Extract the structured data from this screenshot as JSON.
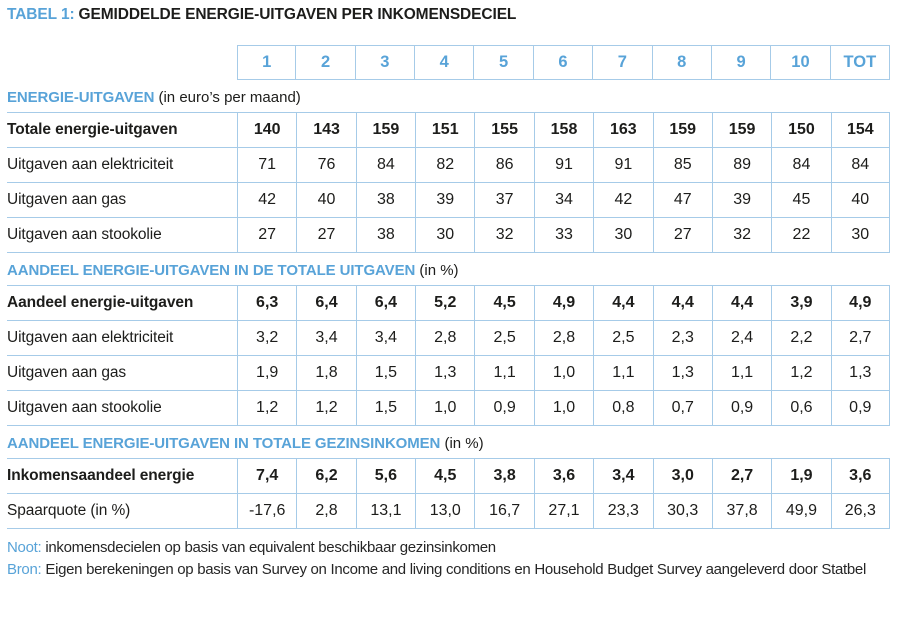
{
  "title": {
    "tag": "TABEL 1:",
    "text": "GEMIDDELDE ENERGIE-UITGAVEN PER INKOMENSDECIEL"
  },
  "colors": {
    "accent_blue": "#58a3d8",
    "grid_line_blue": "#a6cbe8",
    "text_black": "#1d1d1b"
  },
  "table": {
    "columns": [
      "1",
      "2",
      "3",
      "4",
      "5",
      "6",
      "7",
      "8",
      "9",
      "10",
      "TOT"
    ],
    "sections": [
      {
        "heading": "ENERGIE-UITGAVEN",
        "heading_suffix": "(in euro’s per maand)",
        "rows": [
          {
            "label": "Totale energie-uitgaven",
            "bold": true,
            "values": [
              "140",
              "143",
              "159",
              "151",
              "155",
              "158",
              "163",
              "159",
              "159",
              "150",
              "154"
            ]
          },
          {
            "label": "Uitgaven aan elektriciteit",
            "bold": false,
            "values": [
              "71",
              "76",
              "84",
              "82",
              "86",
              "91",
              "91",
              "85",
              "89",
              "84",
              "84"
            ]
          },
          {
            "label": "Uitgaven aan gas",
            "bold": false,
            "values": [
              "42",
              "40",
              "38",
              "39",
              "37",
              "34",
              "42",
              "47",
              "39",
              "45",
              "40"
            ]
          },
          {
            "label": "Uitgaven aan stookolie",
            "bold": false,
            "values": [
              "27",
              "27",
              "38",
              "30",
              "32",
              "33",
              "30",
              "27",
              "32",
              "22",
              "30"
            ]
          }
        ]
      },
      {
        "heading": "AANDEEL ENERGIE-UITGAVEN IN DE TOTALE UITGAVEN",
        "heading_suffix": "(in %)",
        "rows": [
          {
            "label": "Aandeel energie-uitgaven",
            "bold": true,
            "values": [
              "6,3",
              "6,4",
              "6,4",
              "5,2",
              "4,5",
              "4,9",
              "4,4",
              "4,4",
              "4,4",
              "3,9",
              "4,9"
            ]
          },
          {
            "label": "Uitgaven aan elektriciteit",
            "bold": false,
            "values": [
              "3,2",
              "3,4",
              "3,4",
              "2,8",
              "2,5",
              "2,8",
              "2,5",
              "2,3",
              "2,4",
              "2,2",
              "2,7"
            ]
          },
          {
            "label": "Uitgaven aan gas",
            "bold": false,
            "values": [
              "1,9",
              "1,8",
              "1,5",
              "1,3",
              "1,1",
              "1,0",
              "1,1",
              "1,3",
              "1,1",
              "1,2",
              "1,3"
            ]
          },
          {
            "label": "Uitgaven aan stookolie",
            "bold": false,
            "values": [
              "1,2",
              "1,2",
              "1,5",
              "1,0",
              "0,9",
              "1,0",
              "0,8",
              "0,7",
              "0,9",
              "0,6",
              "0,9"
            ]
          }
        ]
      },
      {
        "heading": "AANDEEL ENERGIE-UITGAVEN IN TOTALE GEZINSINKOMEN",
        "heading_suffix": "(in %)",
        "rows": [
          {
            "label": "Inkomensaandeel energie",
            "bold": true,
            "values": [
              "7,4",
              "6,2",
              "5,6",
              "4,5",
              "3,8",
              "3,6",
              "3,4",
              "3,0",
              "2,7",
              "1,9",
              "3,6"
            ]
          },
          {
            "label": "Spaarquote (in %)",
            "bold": false,
            "values": [
              "-17,6",
              "2,8",
              "13,1",
              "13,0",
              "16,7",
              "27,1",
              "23,3",
              "30,3",
              "37,8",
              "49,9",
              "26,3"
            ]
          }
        ]
      }
    ]
  },
  "notes": [
    {
      "tag": "Noot:",
      "text": "inkomensdecielen op basis van equivalent beschikbaar gezinsinkomen"
    },
    {
      "tag": "Bron:",
      "text": "Eigen berekeningen op basis van Survey on Income and living conditions en Household Budget Survey aangeleverd door Statbel"
    }
  ],
  "chart_data": {
    "type": "table",
    "title": "TABEL 1: GEMIDDELDE ENERGIE-UITGAVEN PER INKOMENSDECIEL",
    "columns": [
      "1",
      "2",
      "3",
      "4",
      "5",
      "6",
      "7",
      "8",
      "9",
      "10",
      "TOT"
    ],
    "series": [
      {
        "name": "Totale energie-uitgaven (euro/maand)",
        "values": [
          140,
          143,
          159,
          151,
          155,
          158,
          163,
          159,
          159,
          150,
          154
        ]
      },
      {
        "name": "Uitgaven aan elektriciteit (euro/maand)",
        "values": [
          71,
          76,
          84,
          82,
          86,
          91,
          91,
          85,
          89,
          84,
          84
        ]
      },
      {
        "name": "Uitgaven aan gas (euro/maand)",
        "values": [
          42,
          40,
          38,
          39,
          37,
          34,
          42,
          47,
          39,
          45,
          40
        ]
      },
      {
        "name": "Uitgaven aan stookolie (euro/maand)",
        "values": [
          27,
          27,
          38,
          30,
          32,
          33,
          30,
          27,
          32,
          22,
          30
        ]
      },
      {
        "name": "Aandeel energie-uitgaven in totale uitgaven (%)",
        "values": [
          6.3,
          6.4,
          6.4,
          5.2,
          4.5,
          4.9,
          4.4,
          4.4,
          4.4,
          3.9,
          4.9
        ]
      },
      {
        "name": "Aandeel elektriciteit in totale uitgaven (%)",
        "values": [
          3.2,
          3.4,
          3.4,
          2.8,
          2.5,
          2.8,
          2.5,
          2.3,
          2.4,
          2.2,
          2.7
        ]
      },
      {
        "name": "Aandeel gas in totale uitgaven (%)",
        "values": [
          1.9,
          1.8,
          1.5,
          1.3,
          1.1,
          1.0,
          1.1,
          1.3,
          1.1,
          1.2,
          1.3
        ]
      },
      {
        "name": "Aandeel stookolie in totale uitgaven (%)",
        "values": [
          1.2,
          1.2,
          1.5,
          1.0,
          0.9,
          1.0,
          0.8,
          0.7,
          0.9,
          0.6,
          0.9
        ]
      },
      {
        "name": "Inkomensaandeel energie (%)",
        "values": [
          7.4,
          6.2,
          5.6,
          4.5,
          3.8,
          3.6,
          3.4,
          3.0,
          2.7,
          1.9,
          3.6
        ]
      },
      {
        "name": "Spaarquote (%)",
        "values": [
          -17.6,
          2.8,
          13.1,
          13.0,
          16.7,
          27.1,
          23.3,
          30.3,
          37.8,
          49.9,
          26.3
        ]
      }
    ]
  }
}
